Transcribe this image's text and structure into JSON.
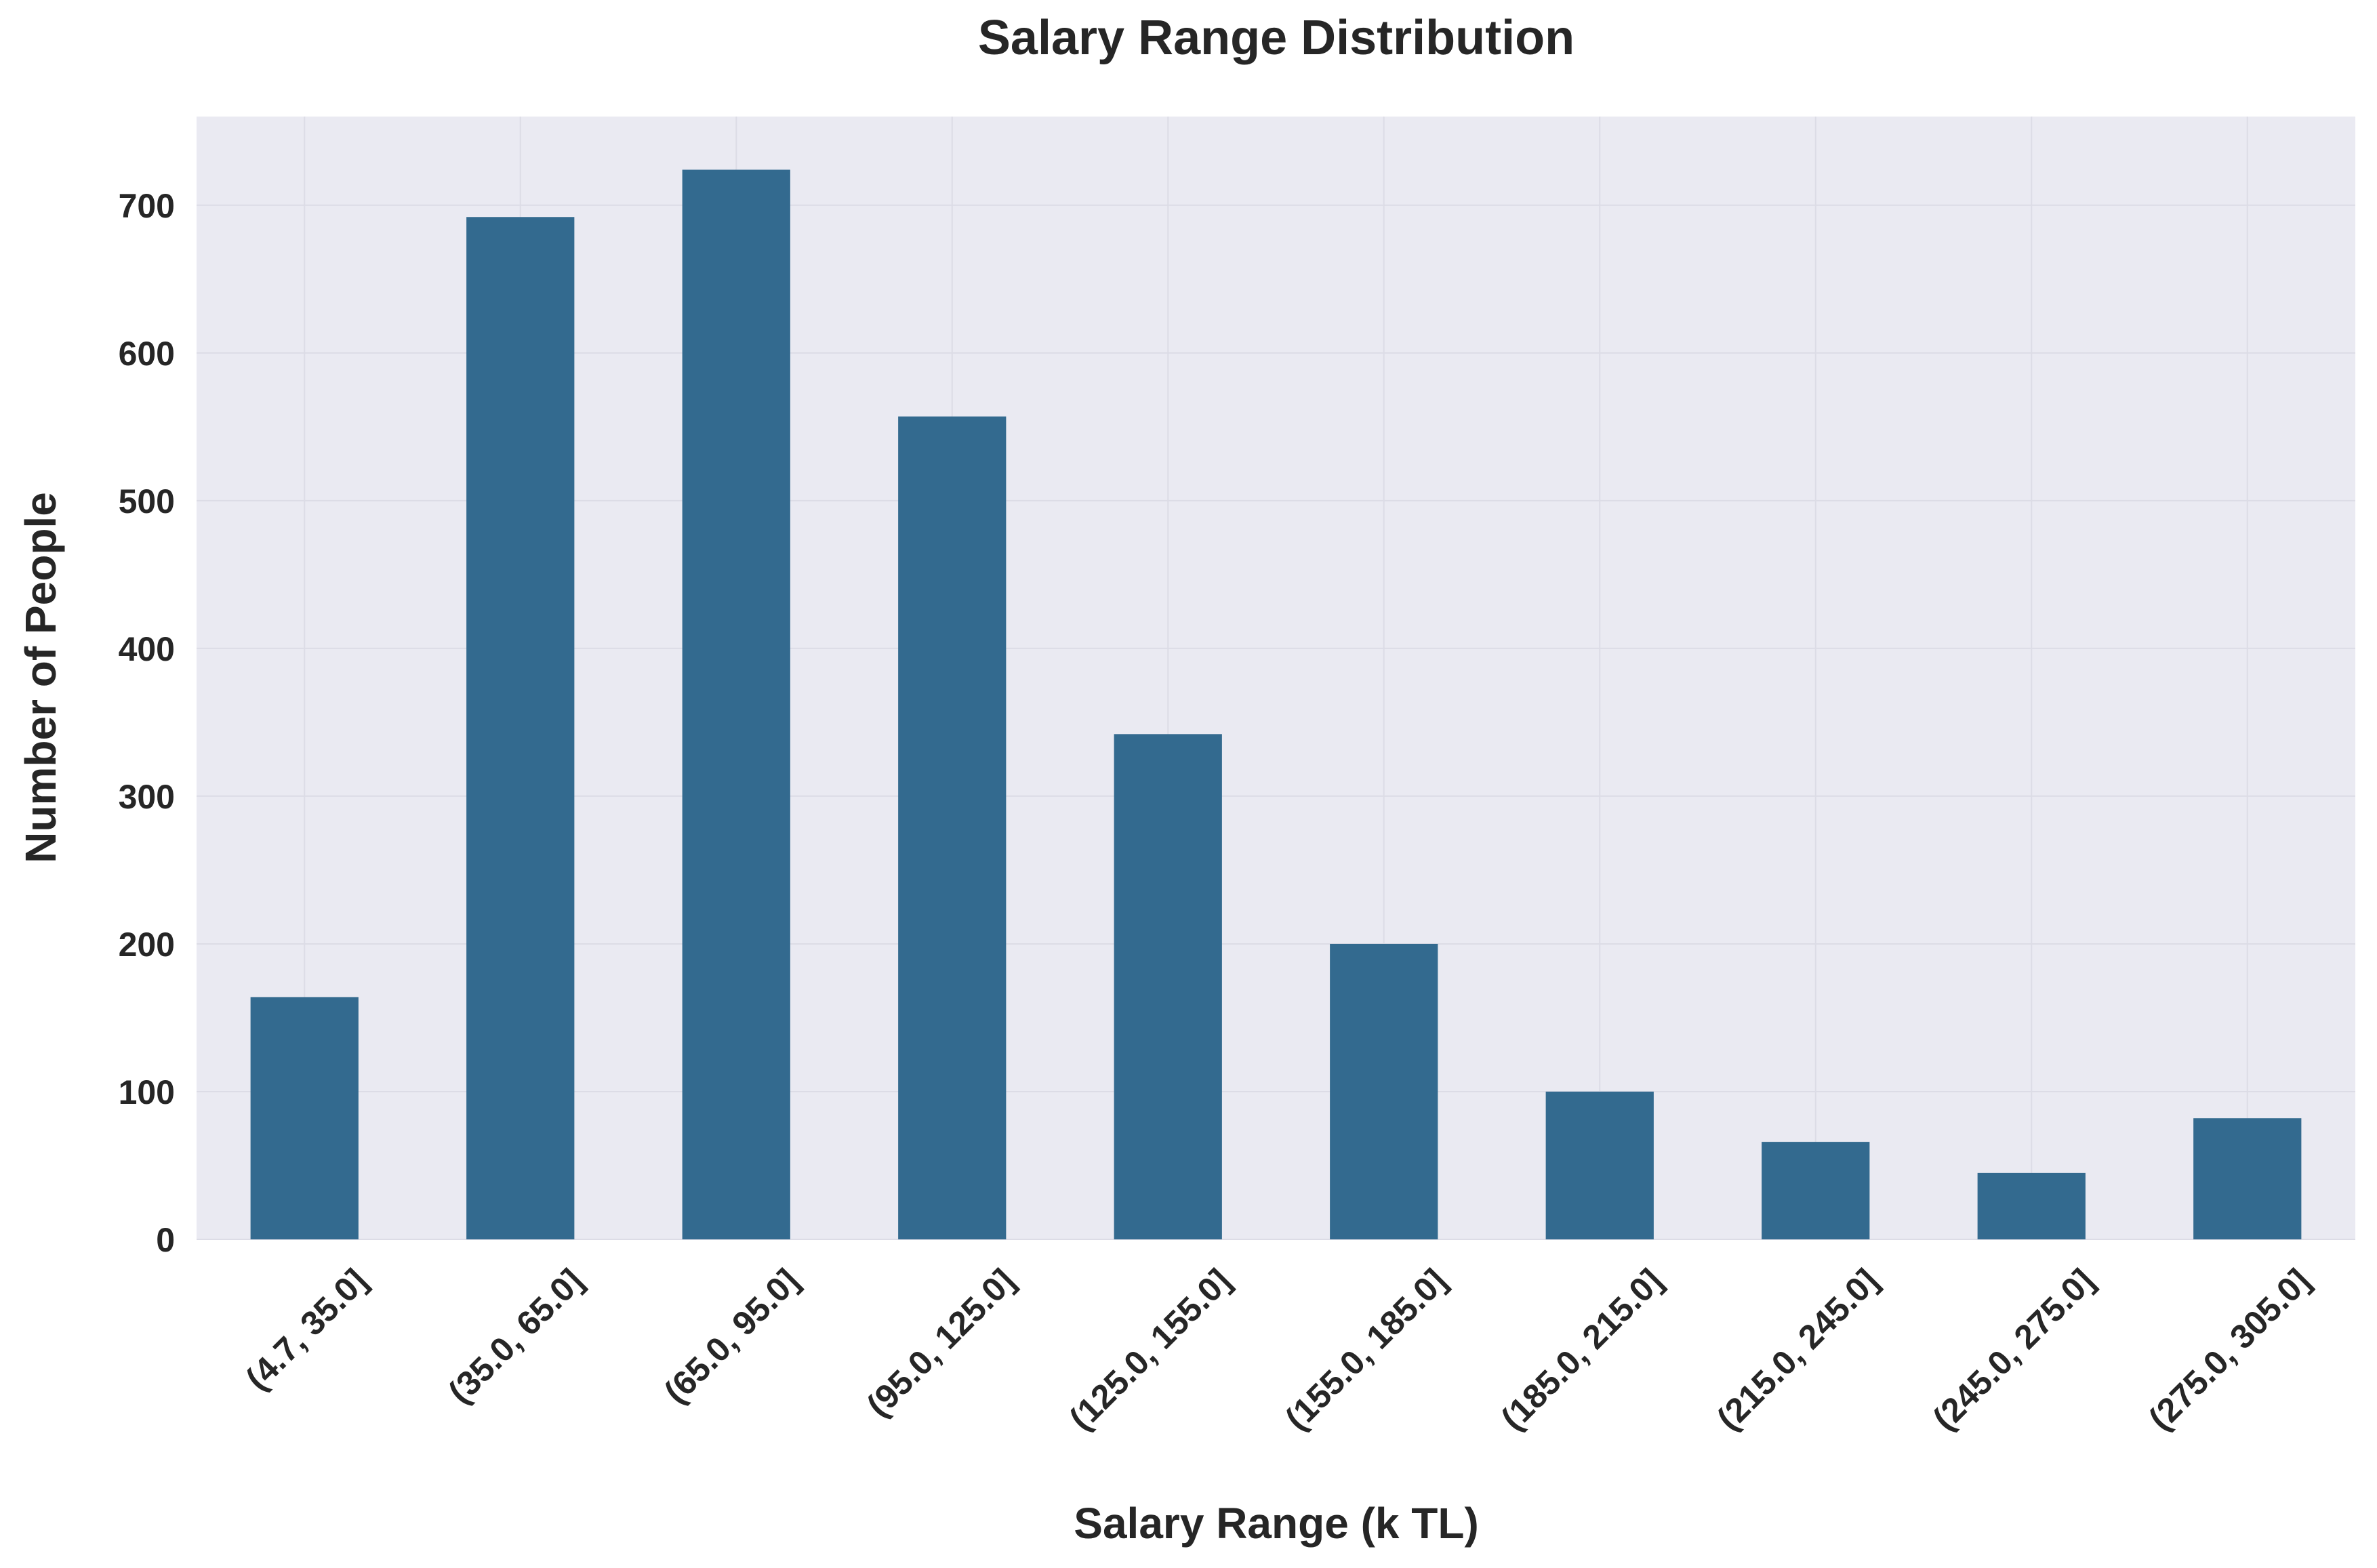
{
  "chart_data": {
    "type": "bar",
    "title": "Salary Range Distribution",
    "xlabel": "Salary Range (k TL)",
    "ylabel": "Number of People",
    "categories": [
      "(4.7, 35.0]",
      "(35.0, 65.0]",
      "(65.0, 95.0]",
      "(95.0, 125.0]",
      "(125.0, 155.0]",
      "(155.0, 185.0]",
      "(185.0, 215.0]",
      "(215.0, 245.0]",
      "(245.0, 275.0]",
      "(275.0, 305.0]"
    ],
    "values": [
      164,
      692,
      724,
      557,
      342,
      200,
      100,
      66,
      45,
      82
    ],
    "ylim": [
      0,
      760
    ],
    "yticks": [
      0,
      100,
      200,
      300,
      400,
      500,
      600,
      700
    ],
    "grid": true,
    "bar_color": "#336a8f",
    "plot_background": "#eaeaf2"
  }
}
